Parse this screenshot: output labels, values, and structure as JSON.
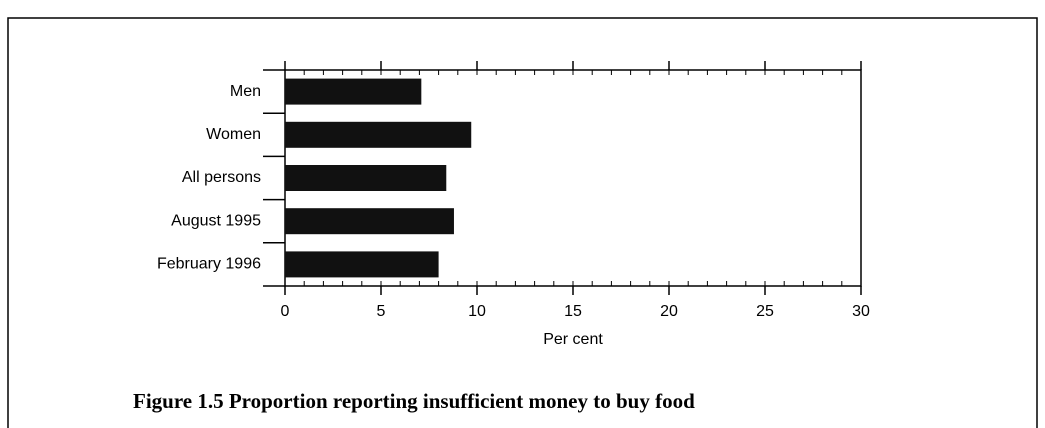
{
  "chart_data": {
    "type": "bar",
    "orientation": "horizontal",
    "title": "Figure 1.5 Proportion reporting  insufficient money to buy food",
    "x_label": "Per cent",
    "categories": [
      "Men",
      "Women",
      "All persons",
      "August 1995",
      "February 1996"
    ],
    "values": [
      7.1,
      9.7,
      8.4,
      8.8,
      8.0
    ],
    "color": "#111111",
    "xlim": [
      0,
      30
    ],
    "xticks": [
      0,
      5,
      10,
      15,
      20,
      25,
      30
    ]
  }
}
